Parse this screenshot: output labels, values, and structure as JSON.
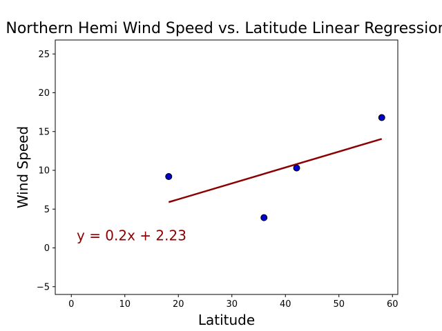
{
  "chart_data": {
    "type": "scatter",
    "title": "Northern Hemi Wind Speed vs. Latitude Linear Regression",
    "xlabel": "Latitude",
    "ylabel": "Wind Speed",
    "xlim": [
      -3,
      61
    ],
    "ylim": [
      -6,
      26.8
    ],
    "xticks": [
      0,
      10,
      20,
      30,
      40,
      50,
      60
    ],
    "yticks": [
      -5,
      0,
      5,
      10,
      15,
      20,
      25
    ],
    "grid": false,
    "points": [
      {
        "x": 18.2,
        "y": 9.2
      },
      {
        "x": 36.0,
        "y": 3.9
      },
      {
        "x": 42.1,
        "y": 10.3
      },
      {
        "x": 58.0,
        "y": 16.8
      }
    ],
    "regression": {
      "x": [
        18.2,
        58.0
      ],
      "y": [
        5.9,
        14.05
      ],
      "equation": "y = 0.2x + 2.23",
      "equation_position": {
        "x": 1,
        "y": 1
      }
    },
    "colors": {
      "points_fill": "#0000cd",
      "points_edge": "#000000",
      "regression_line": "#8b0000",
      "equation_text": "#8b0000"
    }
  }
}
